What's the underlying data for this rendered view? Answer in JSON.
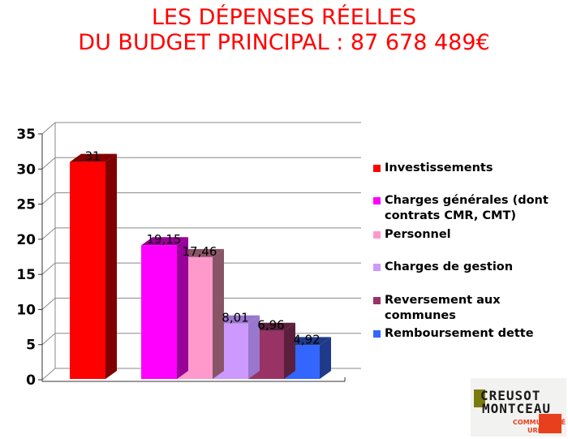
{
  "title": {
    "line1": "LES DÉPENSES RÉELLES",
    "line2": "DU BUDGET PRINCIPAL : 87 678 489€"
  },
  "chart_data": {
    "type": "bar",
    "style": "3d",
    "categories": [
      "Investissements",
      "Charges générales (dont contrats CMR, CMT)",
      "Personnel",
      "Charges de gestion",
      "Reversement aux communes",
      "Remboursement dette"
    ],
    "values": [
      31,
      19.15,
      17.46,
      8.01,
      6.96,
      4.92
    ],
    "data_labels": [
      "31",
      "19,15",
      "17,46",
      "8,01",
      "6,96",
      "4,92"
    ],
    "colors": [
      "#ff0000",
      "#ff00ff",
      "#ff99cc",
      "#cc99ff",
      "#993366",
      "#3366ff"
    ],
    "side_colors": [
      "#800000",
      "#990099",
      "#885566",
      "#9977cc",
      "#5a1f3c",
      "#1f3a8a"
    ],
    "ylim": [
      0,
      35
    ],
    "yticks": [
      "0",
      "5",
      "10",
      "15",
      "20",
      "25",
      "30",
      "35"
    ],
    "grid": true,
    "legend_position": "right",
    "title": "",
    "xlabel": "",
    "ylabel": ""
  },
  "logo": {
    "line1": "CREUSOT",
    "line2": "MONTCEAU",
    "line3": "COMMUNAUTÉ",
    "line4": "URBAINE"
  }
}
